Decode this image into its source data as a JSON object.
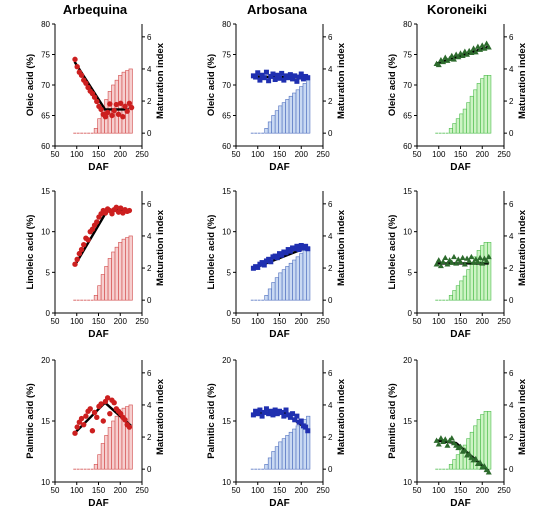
{
  "columns": [
    "Arbequina",
    "Arbosana",
    "Koroneiki"
  ],
  "colors": {
    "Arbequina": {
      "marker": "#cc1f1f",
      "bar_fill": "#f6cfcf",
      "bar_stroke": "#d24a4a"
    },
    "Arbosana": {
      "marker": "#1f2fb0",
      "bar_fill": "#c9d9f2",
      "bar_stroke": "#4f6fbf"
    },
    "Koroneiki": {
      "marker": "#2d6b2d",
      "bar_fill": "#cdf3c4",
      "bar_stroke": "#4cbc4c"
    }
  },
  "chart_data": [
    {
      "type": "scatter",
      "cultivar": "Arbequina",
      "marker": "circle",
      "xlabel": "DAF",
      "ylabel": "Oleic acid (%)",
      "y2label": "Maturation index",
      "xlim": [
        50,
        250
      ],
      "xticks": [
        50,
        100,
        150,
        200,
        250
      ],
      "ylim": [
        60,
        80
      ],
      "yticks": [
        60,
        65,
        70,
        75,
        80
      ],
      "y2lim": [
        -0.8,
        6.8
      ],
      "y2ticks": [
        0,
        2,
        4,
        6
      ],
      "points": {
        "x": [
          96,
          101,
          106,
          111,
          116,
          121,
          126,
          131,
          136,
          141,
          146,
          151,
          156,
          161,
          166,
          171,
          176,
          181,
          186,
          191,
          196,
          201,
          206,
          211,
          216,
          221,
          226
        ],
        "y": [
          74.2,
          73.0,
          72.1,
          71.6,
          70.8,
          70.3,
          69.6,
          69.0,
          68.6,
          68.0,
          67.3,
          66.5,
          66.0,
          65.2,
          64.8,
          65.5,
          66.9,
          65.0,
          65.8,
          66.8,
          65.2,
          67.0,
          64.8,
          66.5,
          65.7,
          67.0,
          66.3
        ]
      },
      "fit": {
        "x": [
          95,
          165,
          220
        ],
        "y": [
          73.8,
          66.0,
          66.0
        ]
      },
      "maturation_bars": {
        "x": [
          96,
          104,
          112,
          120,
          128,
          136,
          144,
          152,
          160,
          168,
          176,
          184,
          192,
          200,
          208,
          216,
          224
        ],
        "y": [
          0,
          0,
          0,
          0,
          0,
          0,
          0.3,
          0.9,
          1.6,
          2.1,
          2.6,
          3.0,
          3.3,
          3.6,
          3.8,
          3.9,
          4.0
        ]
      }
    },
    {
      "type": "scatter",
      "cultivar": "Arbosana",
      "marker": "square",
      "xlabel": "DAF",
      "ylabel": "Oleic acid (%)",
      "y2label": "Maturation index",
      "xlim": [
        50,
        250
      ],
      "xticks": [
        50,
        100,
        150,
        200,
        250
      ],
      "ylim": [
        60,
        80
      ],
      "yticks": [
        60,
        65,
        70,
        75,
        80
      ],
      "y2lim": [
        -0.8,
        6.8
      ],
      "y2ticks": [
        0,
        2,
        4,
        6
      ],
      "points": {
        "x": [
          90,
          95,
          100,
          105,
          110,
          115,
          120,
          125,
          130,
          135,
          140,
          145,
          150,
          155,
          160,
          165,
          170,
          175,
          180,
          185,
          190,
          195,
          200,
          205,
          210,
          215
        ],
        "y": [
          71.5,
          71.3,
          72.0,
          70.8,
          71.6,
          71.2,
          72.1,
          70.7,
          71.4,
          71.8,
          70.9,
          71.6,
          71.1,
          71.9,
          70.8,
          71.5,
          71.2,
          71.7,
          71.0,
          71.5,
          70.6,
          71.3,
          71.8,
          71.0,
          71.4,
          71.2
        ]
      },
      "fit": {
        "x": [
          90,
          215
        ],
        "y": [
          71.4,
          71.2
        ]
      },
      "maturation_bars": {
        "x": [
          88,
          96,
          104,
          112,
          120,
          128,
          136,
          144,
          152,
          160,
          168,
          176,
          184,
          192,
          200,
          208,
          216
        ],
        "y": [
          0,
          0,
          0,
          0,
          0.3,
          0.7,
          1.1,
          1.4,
          1.7,
          1.9,
          2.1,
          2.3,
          2.5,
          2.7,
          2.9,
          3.1,
          3.3
        ]
      }
    },
    {
      "type": "scatter",
      "cultivar": "Koroneiki",
      "marker": "triangle",
      "xlabel": "DAF",
      "ylabel": "Oleic acid (%)",
      "y2label": "Maturation index",
      "xlim": [
        50,
        250
      ],
      "xticks": [
        50,
        100,
        150,
        200,
        250
      ],
      "ylim": [
        60,
        80
      ],
      "yticks": [
        60,
        65,
        70,
        75,
        80
      ],
      "y2lim": [
        -0.8,
        6.8
      ],
      "y2ticks": [
        0,
        2,
        4,
        6
      ],
      "points": {
        "x": [
          95,
          100,
          105,
          110,
          115,
          120,
          125,
          130,
          135,
          140,
          145,
          150,
          155,
          160,
          165,
          170,
          175,
          180,
          185,
          190,
          195,
          200,
          205,
          210,
          215
        ],
        "y": [
          73.5,
          73.3,
          74.1,
          73.8,
          74.5,
          74.0,
          74.3,
          74.8,
          74.2,
          75.0,
          74.6,
          75.2,
          74.8,
          75.5,
          75.0,
          75.6,
          75.3,
          76.0,
          75.4,
          76.3,
          75.8,
          76.5,
          76.0,
          76.8,
          76.2
        ]
      },
      "fit": {
        "x": [
          95,
          215
        ],
        "y": [
          73.5,
          76.3
        ]
      },
      "maturation_bars": {
        "x": [
          96,
          104,
          112,
          120,
          128,
          136,
          144,
          152,
          160,
          168,
          176,
          184,
          192,
          200,
          208,
          216
        ],
        "y": [
          0,
          0,
          0,
          0,
          0.3,
          0.6,
          0.9,
          1.2,
          1.5,
          1.9,
          2.3,
          2.7,
          3.1,
          3.4,
          3.6,
          3.6
        ]
      }
    },
    {
      "type": "scatter",
      "cultivar": "Arbequina",
      "marker": "circle",
      "xlabel": "DAF",
      "ylabel": "Linoleic acid (%)",
      "y2label": "Maturation index",
      "xlim": [
        50,
        250
      ],
      "xticks": [
        50,
        100,
        150,
        200,
        250
      ],
      "ylim": [
        0,
        15
      ],
      "yticks": [
        0,
        5,
        10,
        15
      ],
      "y2lim": [
        -0.8,
        6.8
      ],
      "y2ticks": [
        0,
        2,
        4,
        6
      ],
      "points": {
        "x": [
          96,
          101,
          106,
          111,
          116,
          121,
          126,
          131,
          136,
          141,
          146,
          151,
          156,
          161,
          166,
          171,
          176,
          181,
          186,
          191,
          196,
          201,
          206,
          211,
          216,
          221
        ],
        "y": [
          6.0,
          6.6,
          7.3,
          7.8,
          8.4,
          9.2,
          9.0,
          10.0,
          10.3,
          10.8,
          11.2,
          11.8,
          12.2,
          12.6,
          12.3,
          12.8,
          12.6,
          12.2,
          12.7,
          13.0,
          12.4,
          12.9,
          12.3,
          12.7,
          12.5,
          12.6
        ]
      },
      "fit": {
        "x": [
          95,
          170,
          220
        ],
        "y": [
          5.8,
          12.6,
          12.6
        ]
      },
      "maturation_bars": {
        "x": [
          96,
          104,
          112,
          120,
          128,
          136,
          144,
          152,
          160,
          168,
          176,
          184,
          192,
          200,
          208,
          216,
          224
        ],
        "y": [
          0,
          0,
          0,
          0,
          0,
          0,
          0.3,
          0.9,
          1.6,
          2.1,
          2.6,
          3.0,
          3.3,
          3.6,
          3.8,
          3.9,
          4.0
        ]
      }
    },
    {
      "type": "scatter",
      "cultivar": "Arbosana",
      "marker": "square",
      "xlabel": "DAF",
      "ylabel": "Linoleic acid (%)",
      "y2label": "Maturation index",
      "xlim": [
        50,
        250
      ],
      "xticks": [
        50,
        100,
        150,
        200,
        250
      ],
      "ylim": [
        0,
        15
      ],
      "yticks": [
        0,
        5,
        10,
        15
      ],
      "y2lim": [
        -0.8,
        6.8
      ],
      "y2ticks": [
        0,
        2,
        4,
        6
      ],
      "points": {
        "x": [
          90,
          95,
          100,
          105,
          110,
          115,
          120,
          125,
          130,
          135,
          140,
          145,
          150,
          155,
          160,
          165,
          170,
          175,
          180,
          185,
          190,
          195,
          200,
          205,
          210,
          215
        ],
        "y": [
          5.5,
          5.7,
          5.6,
          6.0,
          6.2,
          5.9,
          6.4,
          6.6,
          6.3,
          6.9,
          7.0,
          6.8,
          7.3,
          7.1,
          7.5,
          7.4,
          7.8,
          7.6,
          8.0,
          7.9,
          8.2,
          7.8,
          8.3,
          8.0,
          8.2,
          7.9
        ]
      },
      "fit": {
        "x": [
          90,
          215
        ],
        "y": [
          5.5,
          8.1
        ]
      },
      "maturation_bars": {
        "x": [
          88,
          96,
          104,
          112,
          120,
          128,
          136,
          144,
          152,
          160,
          168,
          176,
          184,
          192,
          200,
          208,
          216
        ],
        "y": [
          0,
          0,
          0,
          0,
          0.3,
          0.7,
          1.1,
          1.4,
          1.7,
          1.9,
          2.1,
          2.3,
          2.5,
          2.7,
          2.9,
          3.1,
          3.3
        ]
      }
    },
    {
      "type": "scatter",
      "cultivar": "Koroneiki",
      "marker": "triangle",
      "xlabel": "DAF",
      "ylabel": "Linoleic acid (%)",
      "y2label": "Maturation index",
      "xlim": [
        50,
        250
      ],
      "xticks": [
        50,
        100,
        150,
        200,
        250
      ],
      "ylim": [
        0,
        15
      ],
      "yticks": [
        0,
        5,
        10,
        15
      ],
      "y2lim": [
        -0.8,
        6.8
      ],
      "y2ticks": [
        0,
        2,
        4,
        6
      ],
      "points": {
        "x": [
          95,
          100,
          105,
          110,
          115,
          120,
          125,
          130,
          135,
          140,
          145,
          150,
          155,
          160,
          165,
          170,
          175,
          180,
          185,
          190,
          195,
          200,
          205,
          210,
          215
        ],
        "y": [
          6.0,
          6.5,
          5.8,
          6.3,
          6.8,
          6.0,
          6.5,
          6.2,
          6.9,
          6.1,
          6.6,
          6.3,
          6.8,
          6.0,
          6.7,
          6.4,
          6.9,
          6.2,
          6.6,
          6.3,
          6.8,
          6.1,
          6.7,
          6.4,
          6.9
        ]
      },
      "fit": {
        "x": [
          95,
          215
        ],
        "y": [
          6.1,
          6.1
        ]
      },
      "maturation_bars": {
        "x": [
          96,
          104,
          112,
          120,
          128,
          136,
          144,
          152,
          160,
          168,
          176,
          184,
          192,
          200,
          208,
          216
        ],
        "y": [
          0,
          0,
          0,
          0,
          0.3,
          0.6,
          0.9,
          1.2,
          1.5,
          1.9,
          2.3,
          2.7,
          3.1,
          3.4,
          3.6,
          3.6
        ]
      }
    },
    {
      "type": "scatter",
      "cultivar": "Arbequina",
      "marker": "circle",
      "xlabel": "DAF",
      "ylabel": "Palmitic acid (%)",
      "y2label": "Maturation index",
      "xlim": [
        50,
        250
      ],
      "xticks": [
        50,
        100,
        150,
        200,
        250
      ],
      "ylim": [
        10,
        20
      ],
      "yticks": [
        10,
        15,
        20
      ],
      "y2lim": [
        -0.8,
        6.8
      ],
      "y2ticks": [
        0,
        2,
        4,
        6
      ],
      "points": {
        "x": [
          96,
          101,
          106,
          111,
          116,
          121,
          126,
          131,
          136,
          141,
          146,
          151,
          156,
          161,
          166,
          171,
          176,
          181,
          186,
          191,
          196,
          201,
          206,
          211,
          216,
          221
        ],
        "y": [
          14.0,
          14.5,
          14.9,
          15.2,
          14.7,
          15.4,
          15.8,
          16.0,
          14.2,
          15.7,
          15.3,
          16.2,
          16.4,
          15.0,
          16.6,
          16.9,
          15.6,
          16.7,
          16.5,
          16.0,
          15.8,
          15.6,
          15.3,
          15.1,
          14.7,
          14.5
        ]
      },
      "fit": {
        "x": [
          95,
          165,
          225
        ],
        "y": [
          14.0,
          16.5,
          14.6
        ]
      },
      "maturation_bars": {
        "x": [
          96,
          104,
          112,
          120,
          128,
          136,
          144,
          152,
          160,
          168,
          176,
          184,
          192,
          200,
          208,
          216,
          224
        ],
        "y": [
          0,
          0,
          0,
          0,
          0,
          0,
          0.3,
          0.9,
          1.6,
          2.1,
          2.6,
          3.0,
          3.3,
          3.6,
          3.8,
          3.9,
          4.0
        ]
      }
    },
    {
      "type": "scatter",
      "cultivar": "Arbosana",
      "marker": "square",
      "xlabel": "DAF",
      "ylabel": "Palmitic acid (%)",
      "y2label": "Maturation index",
      "xlim": [
        50,
        250
      ],
      "xticks": [
        50,
        100,
        150,
        200,
        250
      ],
      "ylim": [
        10,
        20
      ],
      "yticks": [
        10,
        15,
        20
      ],
      "y2lim": [
        -0.8,
        6.8
      ],
      "y2ticks": [
        0,
        2,
        4,
        6
      ],
      "points": {
        "x": [
          90,
          95,
          100,
          105,
          110,
          115,
          120,
          125,
          130,
          135,
          140,
          145,
          150,
          155,
          160,
          165,
          170,
          175,
          180,
          185,
          190,
          195,
          200,
          205,
          210,
          215
        ],
        "y": [
          15.5,
          15.8,
          15.6,
          15.9,
          15.4,
          15.7,
          16.0,
          15.6,
          15.8,
          15.5,
          15.9,
          15.6,
          15.8,
          15.7,
          15.4,
          15.9,
          15.5,
          15.3,
          15.6,
          15.1,
          15.4,
          14.9,
          15.0,
          14.6,
          14.5,
          14.2
        ]
      },
      "fit": {
        "x": [
          90,
          160,
          215
        ],
        "y": [
          15.7,
          15.7,
          14.3
        ]
      },
      "maturation_bars": {
        "x": [
          88,
          96,
          104,
          112,
          120,
          128,
          136,
          144,
          152,
          160,
          168,
          176,
          184,
          192,
          200,
          208,
          216
        ],
        "y": [
          0,
          0,
          0,
          0,
          0.3,
          0.7,
          1.1,
          1.4,
          1.7,
          1.9,
          2.1,
          2.3,
          2.5,
          2.7,
          2.9,
          3.1,
          3.3
        ]
      }
    },
    {
      "type": "scatter",
      "cultivar": "Koroneiki",
      "marker": "triangle",
      "xlabel": "DAF",
      "ylabel": "Palmitic acid (%)",
      "y2label": "Maturation index",
      "xlim": [
        50,
        250
      ],
      "xticks": [
        50,
        100,
        150,
        200,
        250
      ],
      "ylim": [
        10,
        20
      ],
      "yticks": [
        10,
        15,
        20
      ],
      "y2lim": [
        -0.8,
        6.8
      ],
      "y2ticks": [
        0,
        2,
        4,
        6
      ],
      "points": {
        "x": [
          95,
          100,
          105,
          110,
          115,
          120,
          125,
          130,
          135,
          140,
          145,
          150,
          155,
          160,
          165,
          170,
          175,
          180,
          185,
          190,
          195,
          200,
          205,
          210,
          215
        ],
        "y": [
          13.4,
          13.1,
          13.6,
          13.3,
          13.5,
          13.0,
          13.4,
          13.6,
          13.2,
          13.0,
          12.8,
          12.9,
          12.5,
          12.6,
          12.2,
          12.3,
          12.0,
          11.8,
          11.9,
          11.5,
          11.6,
          11.2,
          11.3,
          11.0,
          10.8
        ]
      },
      "fit": {
        "x": [
          95,
          140,
          215
        ],
        "y": [
          13.4,
          13.2,
          10.9
        ]
      },
      "maturation_bars": {
        "x": [
          96,
          104,
          112,
          120,
          128,
          136,
          144,
          152,
          160,
          168,
          176,
          184,
          192,
          200,
          208,
          216
        ],
        "y": [
          0,
          0,
          0,
          0,
          0.3,
          0.6,
          0.9,
          1.2,
          1.5,
          1.9,
          2.3,
          2.7,
          3.1,
          3.4,
          3.6,
          3.6
        ]
      }
    }
  ]
}
